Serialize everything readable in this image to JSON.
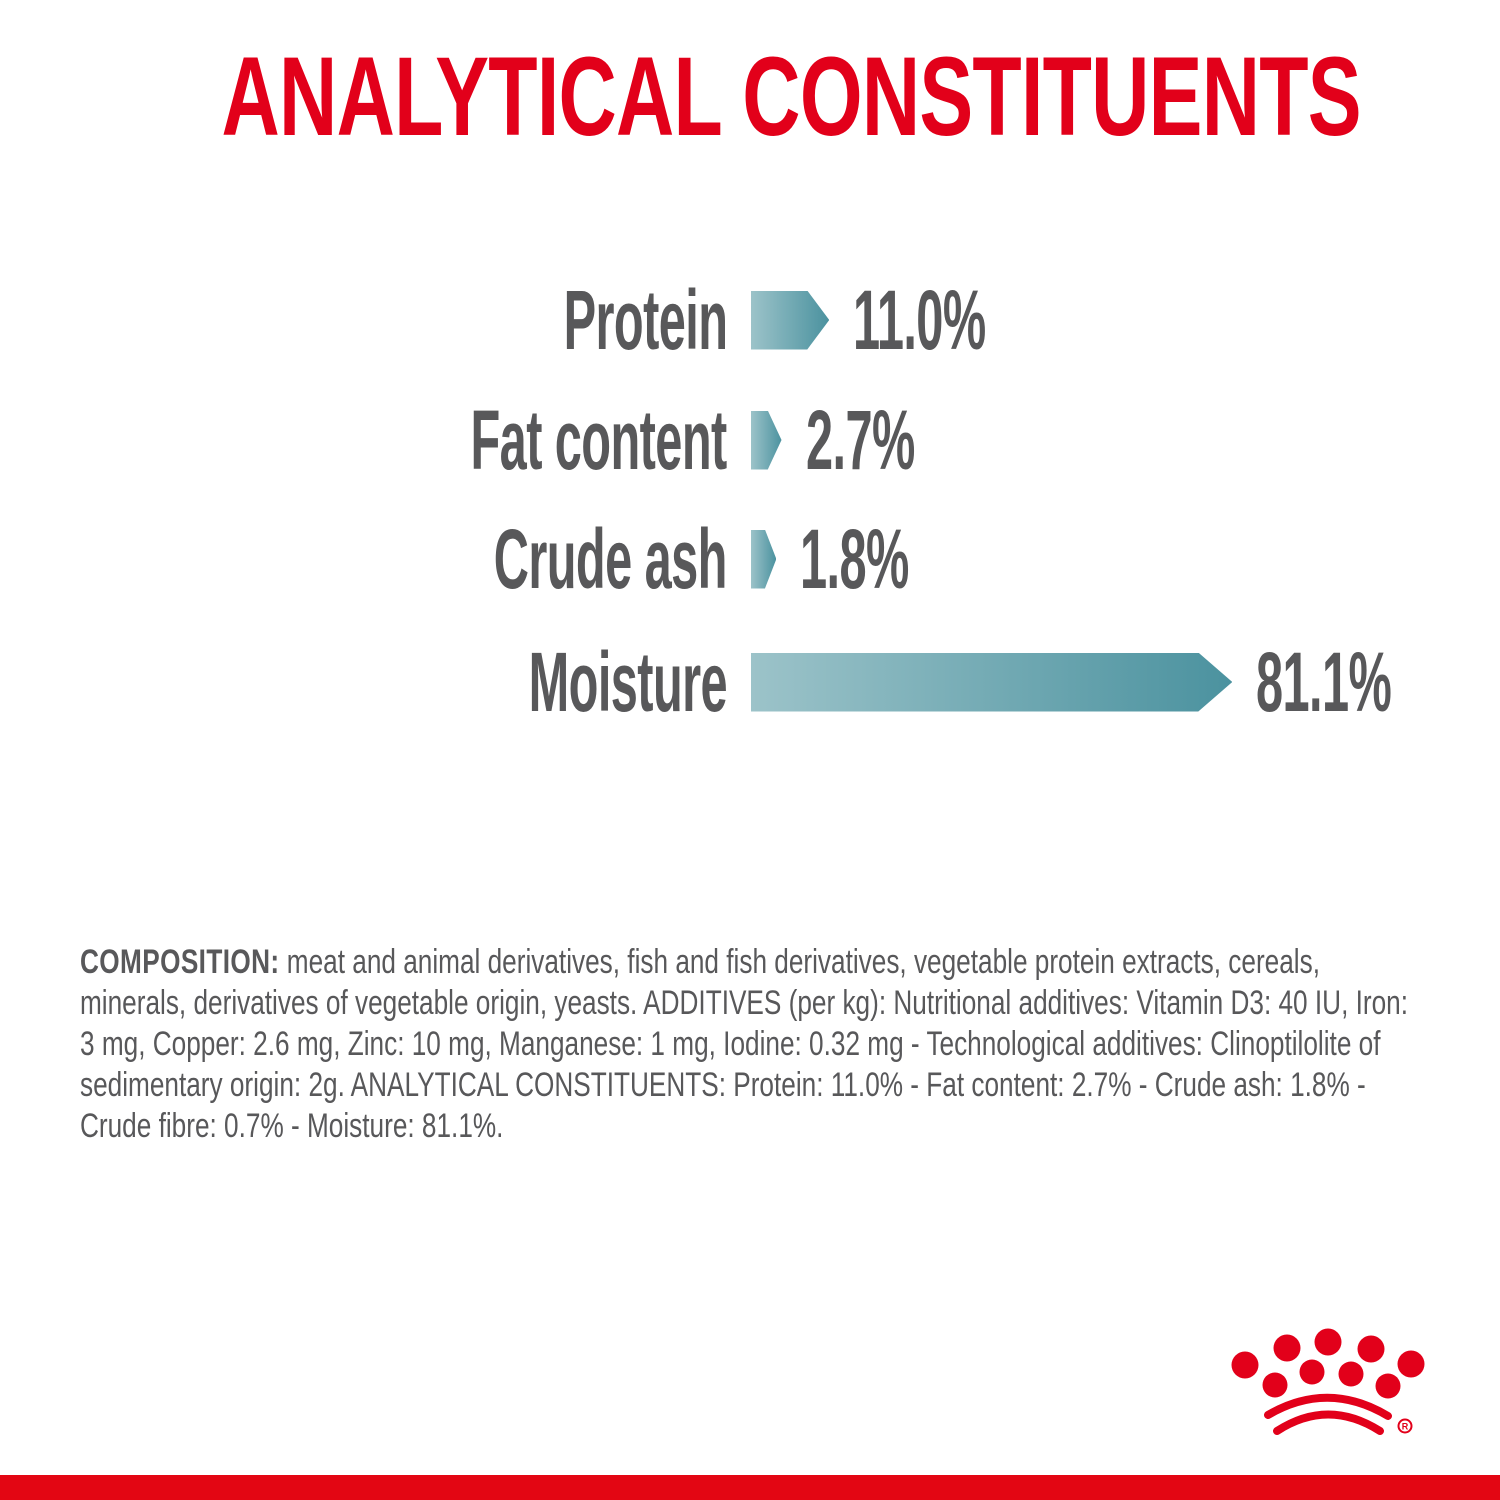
{
  "title": {
    "text": "ANALYTICAL CONSTITUENTS",
    "color": "#e2001a"
  },
  "chart_data": {
    "type": "bar",
    "orientation": "horizontal",
    "unit": "%",
    "categories": [
      "Protein",
      "Fat content",
      "Crude ash",
      "Moisture"
    ],
    "values": [
      11.0,
      2.7,
      1.8,
      81.1
    ],
    "value_labels": [
      "11.0%",
      "2.7%",
      "1.8%",
      "81.1%"
    ],
    "xlim": [
      0,
      100
    ],
    "grid": false,
    "bar_gradient_start": "#9cc3c9",
    "bar_gradient_end": "#4b929f",
    "label_color": "#58585a"
  },
  "composition": {
    "label": "COMPOSITION:",
    "text": "meat and animal derivatives, fish and fish derivatives, vegetable protein extracts, cereals, minerals, derivatives of vegetable origin, yeasts. ADDITIVES (per kg): Nutritional additives: Vitamin D3: 40 IU, Iron: 3 mg, Copper: 2.6 mg, Zinc: 10 mg, Manganese: 1 mg, Iodine: 0.32 mg - Technological additives: Clinoptilolite of sedimentary origin: 2g. ANALYTICAL CONSTITUENTS: Protein: 11.0% - Fat content: 2.7% - Crude ash: 1.8% - Crude fibre: 0.7% - Moisture: 81.1%."
  },
  "branding": {
    "logo": "royal-canin-crown",
    "registered_mark": "R",
    "color": "#e2001a"
  },
  "footer": {
    "bar_color": "#e30613"
  }
}
